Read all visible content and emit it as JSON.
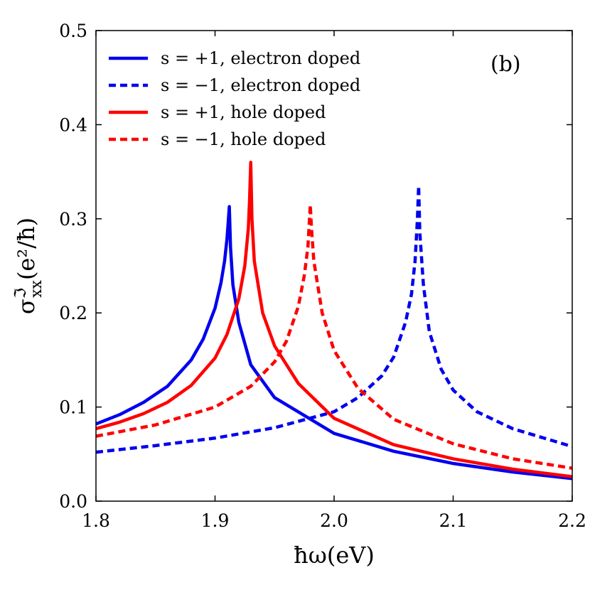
{
  "chart_data": {
    "type": "line",
    "title": "",
    "panel_label": "(b)",
    "xlabel": "ħω(eV)",
    "ylabel": "σ",
    "ylabel_super": "ℑ",
    "ylabel_sub": "xx",
    "ylabel_unit": "(e²/ħ)",
    "xlim": [
      1.8,
      2.2
    ],
    "ylim": [
      0.0,
      0.5
    ],
    "x_ticks": [
      1.8,
      1.9,
      2.0,
      2.1,
      2.2
    ],
    "x_tick_labels": [
      "1.8",
      "1.9",
      "2.0",
      "2.1",
      "2.2"
    ],
    "y_ticks": [
      0.0,
      0.1,
      0.2,
      0.3,
      0.4,
      0.5
    ],
    "y_tick_labels": [
      "0.0",
      "0.1",
      "0.2",
      "0.3",
      "0.4",
      "0.5"
    ],
    "grid": false,
    "legend_position": "top-left",
    "series": [
      {
        "name": "s = +1, electron doped",
        "color": "#0000ee",
        "style": "solid",
        "x": [
          1.8,
          1.82,
          1.84,
          1.86,
          1.88,
          1.89,
          1.9,
          1.905,
          1.908,
          1.91,
          1.911,
          1.912,
          1.913,
          1.915,
          1.92,
          1.93,
          1.95,
          2.0,
          2.05,
          2.1,
          2.15,
          2.2
        ],
        "y": [
          0.082,
          0.092,
          0.105,
          0.122,
          0.15,
          0.172,
          0.205,
          0.232,
          0.255,
          0.278,
          0.295,
          0.313,
          0.27,
          0.23,
          0.19,
          0.145,
          0.11,
          0.072,
          0.053,
          0.04,
          0.031,
          0.024
        ]
      },
      {
        "name": "s = −1, electron doped",
        "color": "#0000ee",
        "style": "dashed",
        "x": [
          1.8,
          1.85,
          1.9,
          1.95,
          2.0,
          2.02,
          2.04,
          2.05,
          2.06,
          2.065,
          2.068,
          2.07,
          2.071,
          2.072,
          2.075,
          2.08,
          2.09,
          2.1,
          2.12,
          2.15,
          2.2
        ],
        "y": [
          0.052,
          0.059,
          0.067,
          0.078,
          0.095,
          0.11,
          0.133,
          0.153,
          0.19,
          0.22,
          0.255,
          0.3,
          0.335,
          0.285,
          0.23,
          0.18,
          0.14,
          0.118,
          0.095,
          0.077,
          0.058
        ]
      },
      {
        "name": "s = +1, hole doped",
        "color": "#ff0000",
        "style": "solid",
        "x": [
          1.8,
          1.82,
          1.84,
          1.86,
          1.88,
          1.9,
          1.91,
          1.92,
          1.925,
          1.928,
          1.929,
          1.93,
          1.931,
          1.933,
          1.94,
          1.95,
          1.97,
          2.0,
          2.05,
          2.1,
          2.15,
          2.2
        ],
        "y": [
          0.077,
          0.084,
          0.093,
          0.105,
          0.123,
          0.152,
          0.177,
          0.215,
          0.25,
          0.29,
          0.32,
          0.36,
          0.3,
          0.255,
          0.2,
          0.165,
          0.125,
          0.088,
          0.06,
          0.045,
          0.034,
          0.026
        ]
      },
      {
        "name": "s = −1, hole doped",
        "color": "#ff0000",
        "style": "dashed",
        "x": [
          1.8,
          1.85,
          1.9,
          1.93,
          1.95,
          1.96,
          1.97,
          1.975,
          1.978,
          1.979,
          1.98,
          1.981,
          1.983,
          1.99,
          2.0,
          2.02,
          2.05,
          2.1,
          2.15,
          2.2
        ],
        "y": [
          0.069,
          0.081,
          0.1,
          0.122,
          0.148,
          0.17,
          0.207,
          0.24,
          0.27,
          0.292,
          0.315,
          0.29,
          0.255,
          0.2,
          0.16,
          0.12,
          0.087,
          0.061,
          0.045,
          0.035
        ]
      }
    ]
  }
}
